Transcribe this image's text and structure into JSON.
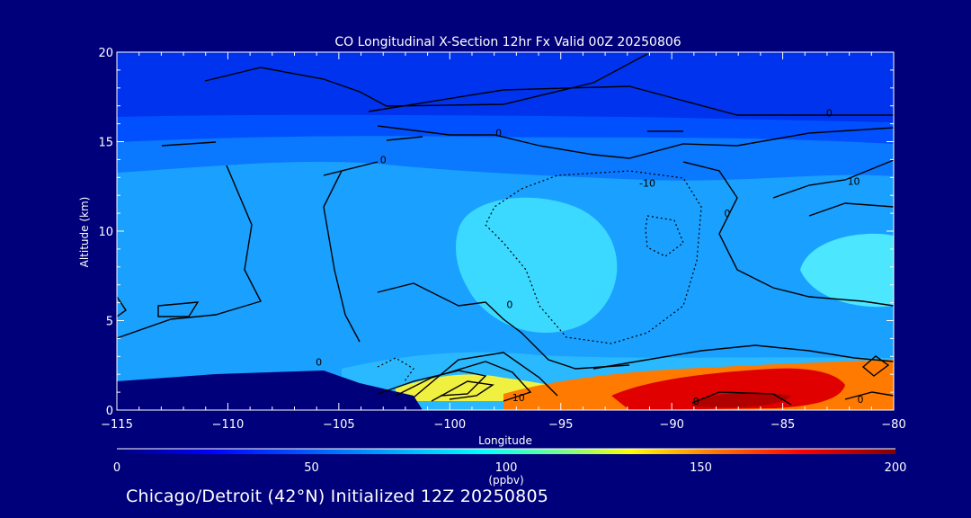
{
  "chart_data": {
    "type": "heatmap",
    "title": "CO Longitudinal X-Section 12hr  Fx Valid 00Z 20250806",
    "xlabel": "Longitude",
    "ylabel": "Altitude (km)",
    "xlim": [
      -115,
      -80
    ],
    "ylim": [
      0,
      20
    ],
    "x_ticks": [
      -115,
      -110,
      -105,
      -100,
      -95,
      -90,
      -85,
      -80
    ],
    "x_tick_labels": [
      "−115",
      "−110",
      "−105",
      "−100",
      "−95",
      "−90",
      "−85",
      "−80"
    ],
    "y_ticks": [
      0,
      5,
      10,
      15,
      20
    ],
    "y_tick_labels": [
      "0",
      "5",
      "10",
      "15",
      "20"
    ],
    "colorbar": {
      "min": 0,
      "max": 200,
      "ticks": [
        0,
        50,
        100,
        150,
        200
      ],
      "tick_labels": [
        "0",
        "50",
        "100",
        "150",
        "200"
      ],
      "units": "(ppbv)",
      "colors": [
        "#00007a",
        "#0000ff",
        "#0080ff",
        "#00ffff",
        "#80ff80",
        "#ffff00",
        "#ff8000",
        "#ff0000",
        "#800000"
      ]
    },
    "color_layers": [
      {
        "name": "upper-stratosphere",
        "co_ppbv": 20,
        "color": "#0033ee"
      },
      {
        "name": "tropopause-band",
        "co_ppbv": 35,
        "color": "#0050ff"
      },
      {
        "name": "upper-troposphere",
        "co_ppbv": 60,
        "color": "#0a78ff"
      },
      {
        "name": "mid-troposphere",
        "co_ppbv": 75,
        "color": "#1aa0ff"
      },
      {
        "name": "central-plume",
        "co_ppbv": 90,
        "color": "#3bd8ff"
      },
      {
        "name": "eastern-plume",
        "co_ppbv": 95,
        "color": "#4ce6ff"
      },
      {
        "name": "boundary-layer-west",
        "co_ppbv": 90,
        "color": "#2ab8ff"
      },
      {
        "name": "boundary-layer-fire",
        "co_ppbv": 175,
        "color": "#e00000"
      }
    ],
    "contour_labels": [
      {
        "text": "0",
        "lon": -82.9,
        "alt": 16.6
      },
      {
        "text": "0",
        "lon": -97.8,
        "alt": 15.5
      },
      {
        "text": "0",
        "lon": -103.0,
        "alt": 14.0
      },
      {
        "text": "-10",
        "lon": -91.1,
        "alt": 12.7
      },
      {
        "text": "10",
        "lon": -81.8,
        "alt": 12.8
      },
      {
        "text": "0",
        "lon": -87.5,
        "alt": 11.0
      },
      {
        "text": "0",
        "lon": -97.3,
        "alt": 5.9
      },
      {
        "text": "0",
        "lon": -105.9,
        "alt": 2.7
      },
      {
        "text": "10",
        "lon": -96.9,
        "alt": 0.7
      },
      {
        "text": "0",
        "lon": -88.9,
        "alt": 0.5
      },
      {
        "text": "0",
        "lon": -81.5,
        "alt": 0.6
      }
    ]
  },
  "footer": {
    "caption": "Chicago/Detroit (42°N) Initialized 12Z 20250805"
  }
}
